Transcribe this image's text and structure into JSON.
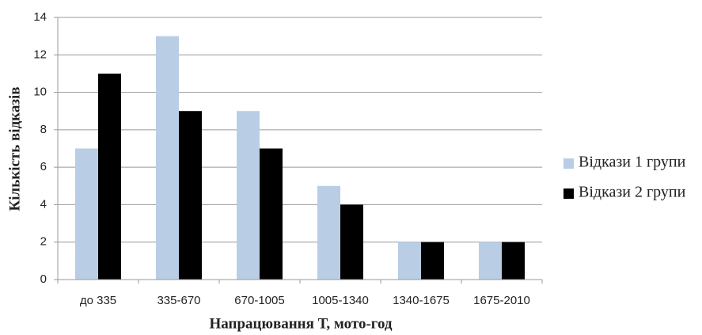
{
  "chart_data": {
    "type": "bar",
    "categories": [
      "до 335",
      "335-670",
      "670-1005",
      "1005-1340",
      "1340-1675",
      "1675-2010"
    ],
    "series": [
      {
        "name": "Відкази 1 групи",
        "color": "#b9cde5",
        "values": [
          7,
          13,
          9,
          5,
          2,
          2
        ]
      },
      {
        "name": "Відкази 2 групи",
        "color": "#000000",
        "values": [
          11,
          9,
          7,
          4,
          2,
          2
        ]
      }
    ],
    "xlabel": "Напрацювання  Т, мото-год",
    "ylabel": "Кількість  відказів",
    "ylim": [
      0,
      14
    ],
    "yticks": [
      0,
      2,
      4,
      6,
      8,
      10,
      12,
      14
    ],
    "grid": true,
    "legend": "right"
  }
}
